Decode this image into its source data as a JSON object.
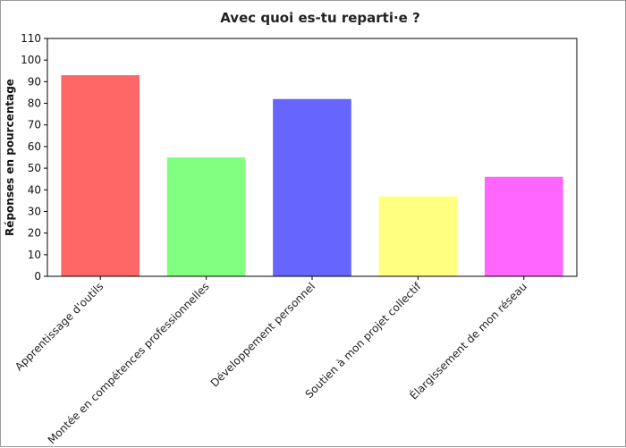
{
  "chart_data": {
    "type": "bar",
    "title": "Avec quoi es-tu reparti·e ?",
    "xlabel": "",
    "ylabel": "Réponses en pourcentage",
    "ylim": [
      0,
      110
    ],
    "yticks": [
      0,
      10,
      20,
      30,
      40,
      50,
      60,
      70,
      80,
      90,
      100,
      110
    ],
    "grid": false,
    "categories": [
      "Apprentissage d'outils",
      "Montée en compétences professionnelles",
      "Développement personnel",
      "Soutien à mon projet collectif",
      "Élargissement de mon réseau"
    ],
    "values": [
      93,
      55,
      82,
      37,
      46
    ],
    "colors": [
      "#ff6666",
      "#80ff80",
      "#6666ff",
      "#ffff80",
      "#ff66ff"
    ]
  }
}
